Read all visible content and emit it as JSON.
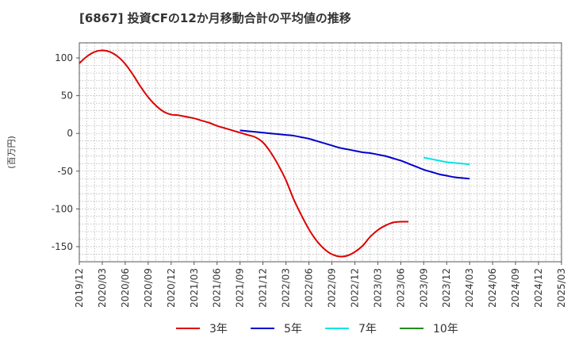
{
  "chart_data": {
    "type": "line",
    "title": "[6867]  投資CFの12か月移動合計の平均値の推移",
    "ylabel": "(百万円)",
    "xlabel": "",
    "ylim": [
      -170,
      120
    ],
    "yticks": [
      100,
      50,
      0,
      -50,
      -100,
      -150
    ],
    "xlim": [
      "2019/12",
      "2025/03"
    ],
    "x_tick_labels": [
      "2019/12",
      "2020/03",
      "2020/06",
      "2020/09",
      "2020/12",
      "2021/03",
      "2021/06",
      "2021/09",
      "2021/12",
      "2022/03",
      "2022/06",
      "2022/09",
      "2022/12",
      "2023/03",
      "2023/06",
      "2023/09",
      "2023/12",
      "2024/03",
      "2024/06",
      "2024/09",
      "2024/12",
      "2025/03"
    ],
    "grid": true,
    "legend_position": "bottom",
    "series": [
      {
        "name": "3年",
        "color": "#dd0000",
        "x": [
          "2019/12",
          "2020/01",
          "2020/02",
          "2020/03",
          "2020/04",
          "2020/05",
          "2020/06",
          "2020/07",
          "2020/08",
          "2020/09",
          "2020/10",
          "2020/11",
          "2020/12",
          "2021/01",
          "2021/02",
          "2021/03",
          "2021/04",
          "2021/05",
          "2021/06",
          "2021/07",
          "2021/08",
          "2021/09",
          "2021/10",
          "2021/11",
          "2021/12",
          "2022/01",
          "2022/02",
          "2022/03",
          "2022/04",
          "2022/05",
          "2022/06",
          "2022/07",
          "2022/08",
          "2022/09",
          "2022/10",
          "2022/11",
          "2022/12",
          "2023/01",
          "2023/02",
          "2023/03",
          "2023/04",
          "2023/05",
          "2023/06",
          "2023/07",
          "2023/08",
          "2023/09",
          "2023/10",
          "2023/11",
          "2023/12",
          "2024/01",
          "2024/02",
          "2024/03"
        ],
        "values": [
          93,
          102,
          108,
          110,
          108,
          102,
          92,
          78,
          62,
          48,
          37,
          29,
          25,
          24,
          22,
          20,
          17,
          14,
          10,
          7,
          4,
          1,
          -2,
          -5,
          -12,
          -25,
          -42,
          -62,
          -87,
          -108,
          -127,
          -142,
          -153,
          -160,
          -163,
          -162,
          -157,
          -149,
          -137,
          -128,
          -122,
          -118,
          -117,
          -117,
          null,
          null,
          null,
          null,
          null,
          null,
          null,
          null
        ]
      },
      {
        "name": "5年",
        "color": "#0000cc",
        "x": [
          "2021/09",
          "2021/10",
          "2021/11",
          "2021/12",
          "2022/01",
          "2022/02",
          "2022/03",
          "2022/04",
          "2022/05",
          "2022/06",
          "2022/07",
          "2022/08",
          "2022/09",
          "2022/10",
          "2022/11",
          "2022/12",
          "2023/01",
          "2023/02",
          "2023/03",
          "2023/04",
          "2023/05",
          "2023/06",
          "2023/07",
          "2023/08",
          "2023/09",
          "2023/10",
          "2023/11",
          "2023/12",
          "2024/01",
          "2024/02",
          "2024/03"
        ],
        "values": [
          4,
          3,
          2,
          1,
          0,
          -1,
          -2,
          -3,
          -5,
          -7,
          -10,
          -13,
          -16,
          -19,
          -21,
          -23,
          -25,
          -26,
          -28,
          -30,
          -33,
          -36,
          -40,
          -44,
          -48,
          -51,
          -54,
          -56,
          -58,
          -59,
          -60
        ]
      },
      {
        "name": "7年",
        "color": "#00e5e5",
        "x": [
          "2023/09",
          "2023/10",
          "2023/11",
          "2023/12",
          "2024/01",
          "2024/02",
          "2024/03"
        ],
        "values": [
          -32,
          -34,
          -36,
          -38,
          -39,
          -40,
          -41
        ]
      },
      {
        "name": "10年",
        "color": "#228b22",
        "x": [],
        "values": []
      }
    ]
  }
}
